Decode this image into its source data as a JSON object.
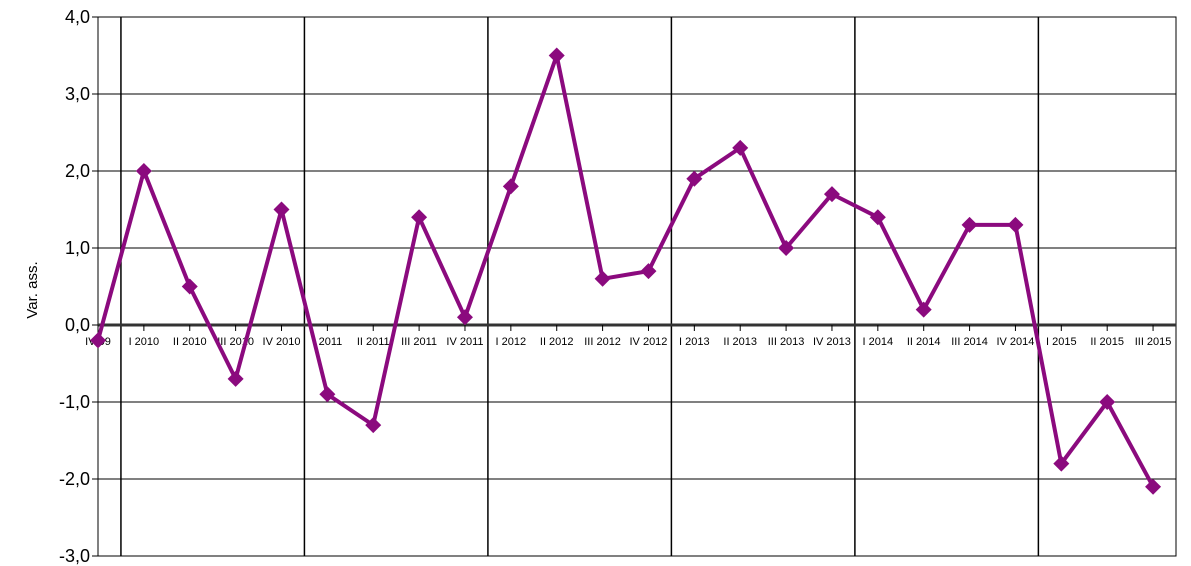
{
  "chart_data": {
    "type": "line",
    "title": "",
    "xlabel": "",
    "ylabel": "Var. ass.",
    "ylim": [
      -3,
      4
    ],
    "yticks": [
      "4,0",
      "3,0",
      "2,0",
      "1,0",
      "0,0",
      "-1,0",
      "-2,0",
      "-3,0"
    ],
    "grid": true,
    "legend": "none",
    "line_color": "#8B0A7E",
    "categories": [
      "IV 09",
      "I 2010",
      "II 2010",
      "III 2010",
      "IV 2010",
      "I 2011",
      "II 2011",
      "III 2011",
      "IV 2011",
      "I 2012",
      "II 2012",
      "III 2012",
      "IV 2012",
      "I 2013",
      "II 2013",
      "III 2013",
      "IV 2013",
      "I 2014",
      "II 2014",
      "III 2014",
      "IV 2014",
      "I 2015",
      "II 2015",
      "III 2015"
    ],
    "series": [
      {
        "values": [
          -0.2,
          2.0,
          0.5,
          -0.7,
          1.5,
          -0.9,
          -1.3,
          1.4,
          0.1,
          1.8,
          3.5,
          0.6,
          0.7,
          1.9,
          2.3,
          1.0,
          1.7,
          1.4,
          0.2,
          1.3,
          1.3,
          -1.8,
          -1.0,
          -2.1
        ]
      }
    ],
    "year_separators_after": [
      0,
      4,
      8,
      12,
      16,
      20
    ]
  }
}
